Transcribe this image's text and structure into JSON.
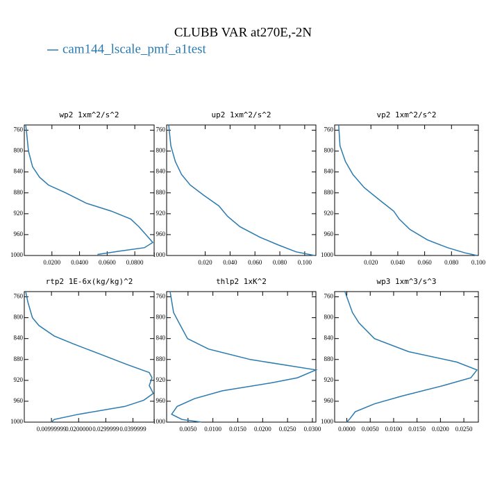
{
  "title": "CLUBB VAR at270E,-2N",
  "series_name": "cam144_lscale_pmf_a1test",
  "color": "#2a7ab0",
  "chart_data": [
    {
      "type": "line",
      "title": "wp2  1xm^2/s^2",
      "y": [
        750,
        760,
        800,
        830,
        850,
        865,
        880,
        900,
        915,
        930,
        945,
        960,
        975,
        985,
        992,
        998
      ],
      "values": [
        0.001,
        0.0015,
        0.003,
        0.006,
        0.011,
        0.0175,
        0.03,
        0.045,
        0.063,
        0.077,
        0.083,
        0.088,
        0.093,
        0.087,
        0.068,
        0.053
      ],
      "xlim": [
        0,
        0.094
      ],
      "ylim": [
        1000,
        750
      ],
      "yticks": [
        760,
        800,
        840,
        880,
        920,
        960,
        1000
      ],
      "xticks": [
        {
          "value": 0.02,
          "label": "0.0200"
        },
        {
          "value": 0.04,
          "label": "0.0400"
        },
        {
          "value": 0.06,
          "label": "0.0600"
        },
        {
          "value": 0.08,
          "label": "0.0800"
        }
      ]
    },
    {
      "type": "line",
      "title": "up2  1xm^2/s^2",
      "y": [
        750,
        790,
        820,
        845,
        865,
        885,
        905,
        925,
        945,
        965,
        980,
        993,
        1000
      ],
      "values": [
        -0.0093,
        -0.0076,
        -0.004,
        0.001,
        0.008,
        0.019,
        0.031,
        0.038,
        0.048,
        0.064,
        0.079,
        0.093,
        0.108
      ],
      "xlim": [
        -0.011,
        0.109
      ],
      "ylim": [
        1000,
        750
      ],
      "yticks": [
        760,
        800,
        840,
        880,
        920,
        960,
        1000
      ],
      "xticks": [
        {
          "value": 0.02,
          "label": "0.020"
        },
        {
          "value": 0.04,
          "label": "0.040"
        },
        {
          "value": 0.06,
          "label": "0.060"
        },
        {
          "value": 0.08,
          "label": "0.080"
        },
        {
          "value": 0.1,
          "label": "0.100"
        }
      ]
    },
    {
      "type": "line",
      "title": "vp2  1xm^2/s^2",
      "y": [
        750,
        790,
        820,
        845,
        870,
        895,
        915,
        930,
        950,
        970,
        985,
        995,
        1000
      ],
      "values": [
        -0.004,
        -0.003,
        0.001,
        0.0066,
        0.015,
        0.027,
        0.037,
        0.041,
        0.049,
        0.062,
        0.077,
        0.09,
        0.099
      ],
      "xlim": [
        -0.007,
        0.1
      ],
      "ylim": [
        1000,
        750
      ],
      "yticks": [
        760,
        800,
        840,
        880,
        920,
        960,
        1000
      ],
      "xticks": [
        {
          "value": 0.02,
          "label": "0.020"
        },
        {
          "value": 0.04,
          "label": "0.040"
        },
        {
          "value": 0.06,
          "label": "0.060"
        },
        {
          "value": 0.08,
          "label": "0.080"
        },
        {
          "value": 0.1,
          "label": "0.100"
        }
      ]
    },
    {
      "type": "line",
      "title": "rtp2  1E-6x(kg/kg)^2",
      "y": [
        750,
        770,
        800,
        815,
        835,
        850,
        870,
        890,
        905,
        915,
        930,
        945,
        958,
        970,
        985,
        995,
        1000
      ],
      "values": [
        0.0005,
        0.0013,
        0.003,
        0.0054,
        0.011,
        0.018,
        0.028,
        0.038,
        0.046,
        0.047,
        0.046,
        0.0475,
        0.044,
        0.037,
        0.02,
        0.011,
        0.01
      ],
      "xlim": [
        0,
        0.0478
      ],
      "ylim": [
        1000,
        750
      ],
      "yticks": [
        760,
        800,
        840,
        880,
        920,
        960,
        1000
      ],
      "xticks": [
        {
          "value": 0.01,
          "label": "0.00999999"
        },
        {
          "value": 0.02,
          "label": "0.0200000"
        },
        {
          "value": 0.03,
          "label": "0.0299999"
        },
        {
          "value": 0.04,
          "label": "0.0399999"
        }
      ]
    },
    {
      "type": "line",
      "title": "thlp2  1xK^2",
      "y": [
        750,
        790,
        810,
        840,
        860,
        880,
        900,
        915,
        925,
        940,
        955,
        970,
        985,
        995,
        1000
      ],
      "values": [
        0.0014,
        0.0021,
        0.0032,
        0.0049,
        0.0091,
        0.0175,
        0.0307,
        0.027,
        0.0216,
        0.0119,
        0.0063,
        0.0028,
        0.0017,
        0.0038,
        0.0077
      ],
      "xlim": [
        0.0007,
        0.0307
      ],
      "ylim": [
        1000,
        750
      ],
      "yticks": [
        760,
        800,
        840,
        880,
        920,
        960,
        1000
      ],
      "xticks": [
        {
          "value": 0.005,
          "label": "0.0050"
        },
        {
          "value": 0.01,
          "label": "0.0100"
        },
        {
          "value": 0.015,
          "label": "0.0150"
        },
        {
          "value": 0.02,
          "label": "0.0200"
        },
        {
          "value": 0.025,
          "label": "0.0250"
        },
        {
          "value": 0.03,
          "label": "0.0300"
        }
      ]
    },
    {
      "type": "line",
      "title": "wp3  1xm^3/s^3",
      "y": [
        750,
        790,
        810,
        840,
        865,
        885,
        900,
        915,
        930,
        950,
        965,
        980,
        993,
        1000
      ],
      "values": [
        -0.0004,
        0.0012,
        0.0026,
        0.0059,
        0.0132,
        0.0235,
        0.0278,
        0.0265,
        0.0206,
        0.0118,
        0.0059,
        0.0018,
        0.0007,
        0
      ],
      "xlim": [
        -0.0026,
        0.0281
      ],
      "ylim": [
        1000,
        750
      ],
      "yticks": [
        760,
        800,
        840,
        880,
        920,
        960,
        1000
      ],
      "xticks": [
        {
          "value": 0,
          "label": "0.0000"
        },
        {
          "value": 0.005,
          "label": "0.0050"
        },
        {
          "value": 0.01,
          "label": "0.0100"
        },
        {
          "value": 0.015,
          "label": "0.0150"
        },
        {
          "value": 0.02,
          "label": "0.0200"
        },
        {
          "value": 0.025,
          "label": "0.0250"
        }
      ]
    }
  ]
}
